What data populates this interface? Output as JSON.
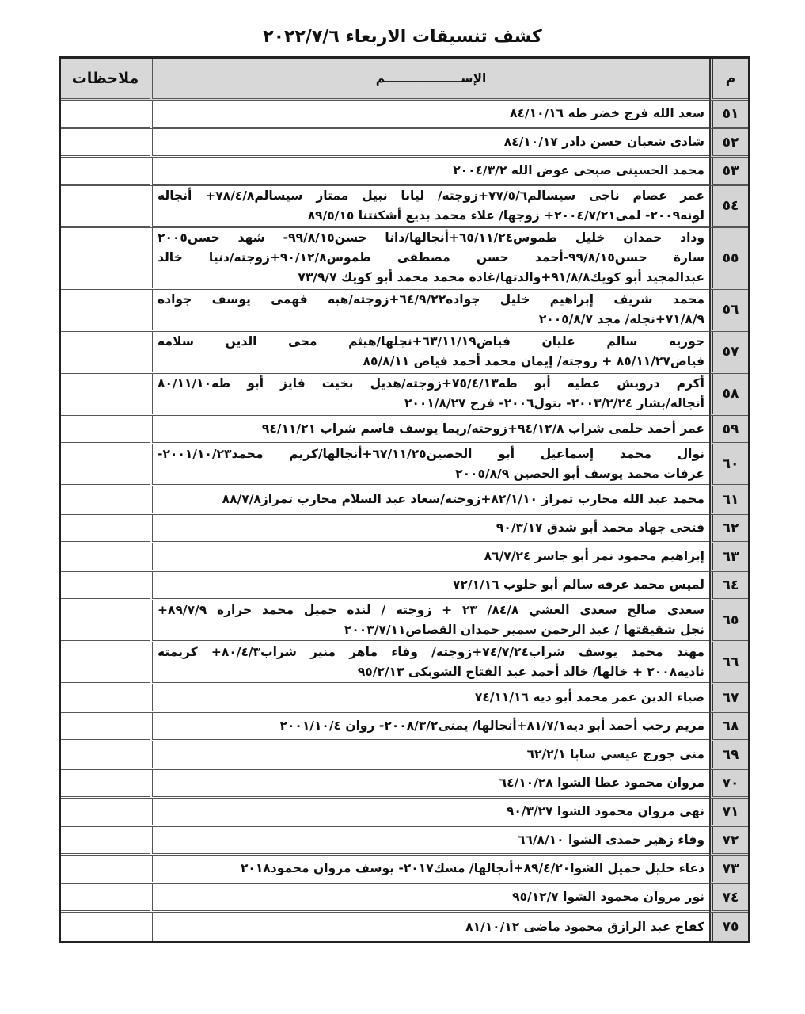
{
  "title": "كشف تنسيقات الاربعاء ٢٠٢٢/٧/٦",
  "headers": {
    "number": "م",
    "name": "الإســــــــــــــــــم",
    "notes": "ملاحظات"
  },
  "rows": [
    {
      "number": "٥١",
      "lines": [
        "سعد الله فرج خضر طه ٨٤/١٠/١٦"
      ]
    },
    {
      "number": "٥٢",
      "lines": [
        "شادى شعبان حسن دادر ٨٤/١٠/١٧"
      ]
    },
    {
      "number": "٥٣",
      "lines": [
        "محمد الحسينى صبحى عوض الله ٢٠٠٤/٣/٢"
      ]
    },
    {
      "number": "٥٤",
      "lines": [
        "عمر عصام ناجى سيسالم٧٧/٥/٦+زوجته/ ليانا نبيل ممتاز سيسالم٧٨/٤/٨+ أنجاله",
        "لونه٢٠٠٩- لمى٢٠٠٤/٧/٢١+ زوجها/ علاء محمد بديع أشكنتنا ٨٩/٥/١٥"
      ]
    },
    {
      "number": "٥٥",
      "lines": [
        "وداد حمدان خليل طموس٦٥/١١/٢٤+أنجالها/دانا حسن٩٩/٨/١٥- شهد حسن٢٠٠٥",
        "سارة حسن٩٩/٨/١٥-أحمد حسن مصطفى طموس٩٠/١٢/٨+زوجته/دنيا خالد",
        "عبدالمجيد أبو كويك٩١/٨/٨+والدتها/غاده محمد محمد أبو كويك ٧٣/٩/٧"
      ]
    },
    {
      "number": "٥٦",
      "lines": [
        "محمد شريف إبراهيم خليل جواده٦٤/٩/٢٢+زوجته/هبه فهمى يوسف جواده",
        "٧١/٨/٩+نجله/ مجد ٢٠٠٥/٨/٧"
      ]
    },
    {
      "number": "٥٧",
      "lines": [
        "حوريه سالم عليان فياض٦٣/١١/١٩+نجلها/هيثم محى الدين سلامه",
        "فياض٨٥/١١/٢٧ + زوجته/ إيمان محمد أحمد فياض ٨٥/٨/١١"
      ]
    },
    {
      "number": "٥٨",
      "lines": [
        "أكرم درويش عطيه أبو طه٧٥/٤/١٣+زوجته/هديل بخيت فايز أبو طه٨٠/١١/١٠",
        "أنجاله/بشار ٢٠٠٣/٢/٢٤- بتول٢٠٠٦- فرح ٢٠٠١/٨/٢٧"
      ]
    },
    {
      "number": "٥٩",
      "lines": [
        "عمر أحمد حلمى شراب ٩٤/١٢/٨+زوجته/ريما يوسف قاسم شراب ٩٤/١١/٢١"
      ]
    },
    {
      "number": "٦٠",
      "lines": [
        "نوال محمد إسماعيل أبو الحصين٦٧/١١/٢٥+أنجالها/كريم محمد٢٠٠١/١٠/٢٣-",
        "عرفات محمد يوسف أبو الحصين ٢٠٠٥/٨/٩"
      ]
    },
    {
      "number": "٦١",
      "lines": [
        "محمد عبد الله محارب تمراز ٨٢/١/١٠+زوجته/سعاد عبد السلام محارب تمراز٨٨/٧/٨"
      ]
    },
    {
      "number": "٦٢",
      "lines": [
        "فتحى جهاد محمد أبو شدق ٩٠/٣/١٧"
      ]
    },
    {
      "number": "٦٣",
      "lines": [
        "إبراهيم محمود نمر أبو جاسر ٨٦/٧/٢٤"
      ]
    },
    {
      "number": "٦٤",
      "lines": [
        "لميس محمد عرفه سالم أبو حلوب ٧٢/١/١٦"
      ]
    },
    {
      "number": "٦٥",
      "lines": [
        "سعدى صالح سعدى العشي ٨٤/٨/ ٢٣ + زوجته / لنده جميل محمد حرارة ٨٩/٧/٩+",
        "نجل شقيقتها / عبد الرحمن سمير حمدان القصاص٢٠٠٣/٧/١١"
      ]
    },
    {
      "number": "٦٦",
      "lines": [
        "مهند محمد يوسف شراب٧٤/٧/٢٤+زوجته/ وفاء ماهر منير شراب٨٠/٤/٣+ كريمته",
        "ناديه٢٠٠٨ + خالها/ خالد أحمد عبد الفتاح الشوبكى ٩٥/٢/١٣"
      ]
    },
    {
      "number": "٦٧",
      "lines": [
        "ضياء الدين عمر محمد أبو ديه ٧٤/١١/١٦"
      ]
    },
    {
      "number": "٦٨",
      "lines": [
        "مريم رجب أحمد أبو ديه٨١/٧/١+أنجالها/ يمنى٢٠٠٨/٣/٢- روان ٢٠٠١/١٠/٤"
      ]
    },
    {
      "number": "٦٩",
      "lines": [
        "منى جورج عيسي سابا ٦٢/٢/١"
      ]
    },
    {
      "number": "٧٠",
      "lines": [
        "مروان محمود عطا الشوا ٦٤/١٠/٢٨"
      ]
    },
    {
      "number": "٧١",
      "lines": [
        "نهى مروان محمود الشوا ٩٠/٣/٢٧"
      ]
    },
    {
      "number": "٧٢",
      "lines": [
        "وفاء زهير حمدى الشوا ٦٦/٨/١٠"
      ]
    },
    {
      "number": "٧٣",
      "lines": [
        "دعاء خليل جميل الشوا٨٩/٤/٢٠+أنجالها/ مسك٢٠١٧- يوسف مروان محمود٢٠١٨"
      ]
    },
    {
      "number": "٧٤",
      "lines": [
        "نور مروان محمود الشوا ٩٥/١٢/٧"
      ]
    },
    {
      "number": "٧٥",
      "lines": [
        "كفاح عبد الرازق محمود ماضى ٨١/١٠/١٢"
      ]
    }
  ]
}
